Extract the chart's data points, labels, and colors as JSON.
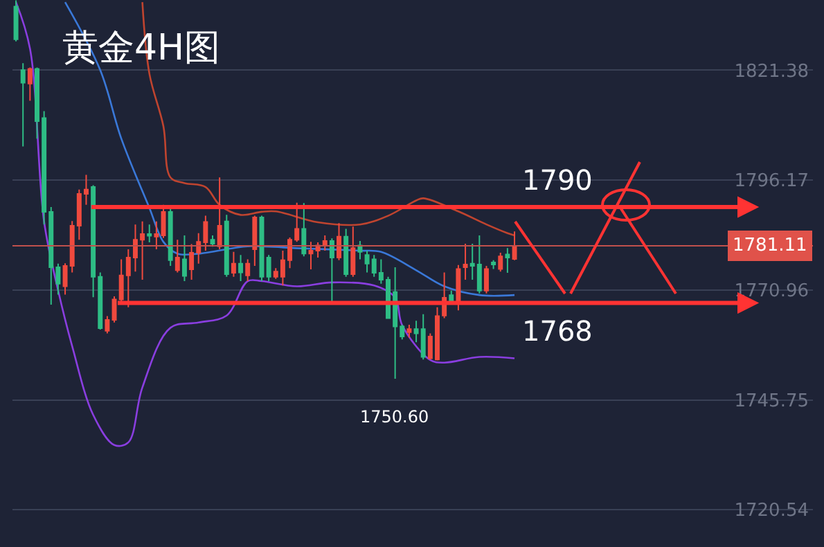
{
  "chart_data": {
    "type": "candlestick",
    "title": "黄金4H图",
    "categories": [
      null,
      null,
      null,
      null,
      null,
      null,
      null,
      null,
      null,
      null,
      null,
      null,
      null,
      null,
      null,
      null,
      null,
      null,
      null,
      null,
      null,
      null,
      null,
      null,
      null,
      null,
      null,
      null,
      null,
      null,
      null,
      null,
      null,
      null,
      null,
      null,
      null,
      null,
      null,
      null,
      null,
      null,
      null,
      null,
      null,
      null,
      null,
      null,
      null,
      null,
      null,
      null,
      null,
      null,
      null,
      null,
      null,
      null,
      null,
      null,
      null,
      null,
      null,
      null,
      null,
      null,
      null,
      null,
      null,
      null,
      null,
      null,
      null,
      null,
      null,
      null,
      null,
      null,
      null,
      null,
      null,
      null,
      null,
      null,
      null,
      null,
      null,
      null,
      null,
      null,
      null,
      null,
      null,
      null,
      null,
      null,
      null,
      null,
      null,
      null,
      null,
      null,
      null,
      null,
      null,
      null,
      null,
      null,
      null,
      null,
      null,
      null,
      null,
      null
    ],
    "ohlc": [
      [
        1836,
        1837.4,
        1828,
        1828.5
      ],
      [
        1821.4,
        1823,
        1803.9,
        1818.5
      ],
      [
        1818.3,
        1822,
        1814.4,
        1821.7
      ],
      [
        1821.7,
        1822,
        1805.7,
        1809.7
      ],
      [
        1810.4,
        1812,
        1786,
        1788.9
      ],
      [
        1788.9,
        1790,
        1767.6,
        1776.2
      ],
      [
        1776.2,
        1777,
        1769.9,
        1772.4
      ],
      [
        1771.8,
        1777.1,
        1769.9,
        1776.5
      ],
      [
        1776.5,
        1786.8,
        1775,
        1785.7
      ],
      [
        1785.7,
        1794,
        1782.5,
        1793
      ],
      [
        1793,
        1797.4,
        1790.5,
        1794
      ],
      [
        1794.6,
        1795,
        1769.3,
        1774
      ],
      [
        1774,
        1775,
        1761.9,
        1762.2
      ],
      [
        1761.6,
        1765,
        1761,
        1764.1
      ],
      [
        1764.1,
        1769.5,
        1763.5,
        1768.8
      ],
      [
        1768.8,
        1778,
        1768.2,
        1774.3
      ],
      [
        1774.3,
        1780.3,
        1767,
        1778.4
      ],
      [
        1778.4,
        1786,
        1775.2,
        1782.5
      ],
      [
        1782.5,
        1786.7,
        1773.3,
        1783.8
      ],
      [
        1783.8,
        1786,
        1781.9,
        1783.4
      ],
      [
        1783.2,
        1786.7,
        1780.3,
        1783.8
      ],
      [
        1783.5,
        1790.5,
        1782.9,
        1788.9
      ],
      [
        1788.9,
        1789.8,
        1776.5,
        1777.8
      ],
      [
        1775.5,
        1782.5,
        1775,
        1778.4
      ],
      [
        1778,
        1783.5,
        1773,
        1774.2
      ],
      [
        1775.7,
        1781.5,
        1773.3,
        1779.5
      ],
      [
        1779.5,
        1784,
        1777,
        1782
      ],
      [
        1781.9,
        1788,
        1780,
        1786.6
      ],
      [
        1782.5,
        1783.5,
        1780.9,
        1781.6
      ],
      [
        1781,
        1796.8,
        1780.3,
        1785.7
      ],
      [
        1786.7,
        1788.2,
        1774,
        1774.6
      ],
      [
        1774.9,
        1779.7,
        1774,
        1777
      ],
      [
        1777,
        1779,
        1773,
        1775
      ],
      [
        1774.3,
        1778,
        1773,
        1777
      ],
      [
        1780.3,
        1788,
        1776.5,
        1787.6
      ],
      [
        1787.6,
        1788,
        1773,
        1774
      ],
      [
        1778.4,
        1779,
        1773,
        1774
      ],
      [
        1774,
        1776,
        1773.5,
        1775.2
      ],
      [
        1774,
        1780,
        1772,
        1777.8
      ],
      [
        1777.8,
        1783,
        1776,
        1782.5
      ],
      [
        1782.5,
        1791,
        1782,
        1785
      ],
      [
        1785,
        1790.9,
        1778.7,
        1779.3
      ],
      [
        1779.3,
        1782,
        1775.7,
        1780
      ],
      [
        1780,
        1781.9,
        1778.4,
        1781.2
      ],
      [
        1781.2,
        1783.5,
        1780,
        1782.2
      ],
      [
        1782.2,
        1782.8,
        1767.9,
        1778.4
      ],
      [
        1778.4,
        1786.3,
        1777.8,
        1783.2
      ],
      [
        1783.2,
        1785,
        1774,
        1774.6
      ],
      [
        1774.6,
        1785.5,
        1774,
        1780.6
      ],
      [
        1781.2,
        1782.2,
        1778,
        1779.7
      ],
      [
        1779,
        1780,
        1775,
        1777
      ],
      [
        1778,
        1779,
        1774,
        1774.9
      ],
      [
        1774.9,
        1778,
        1772.4,
        1773.3
      ],
      [
        1773.3,
        1774,
        1764.5,
        1764.5
      ],
      [
        1770.5,
        1776.2,
        1750.6,
        1762.6
      ],
      [
        1762.6,
        1763,
        1759.6,
        1760.3
      ],
      [
        1761.3,
        1763,
        1760,
        1762
      ],
      [
        1762,
        1763.9,
        1759,
        1761
      ],
      [
        1762,
        1765.4,
        1755,
        1755.6
      ],
      [
        1755.3,
        1761,
        1755,
        1760.3
      ],
      [
        1755,
        1767,
        1754.8,
        1765
      ],
      [
        1765.1,
        1775,
        1764.5,
        1769.2
      ],
      [
        1769.8,
        1770.8,
        1767.6,
        1768.2
      ],
      [
        1768.5,
        1776.7,
        1766.3,
        1775.8
      ],
      [
        1776.2,
        1781.6,
        1773.3,
        1776.8
      ],
      [
        1777,
        1781.6,
        1773.3,
        1776.5
      ],
      [
        1776.8,
        1783.5,
        1770.2,
        1770.8
      ],
      [
        1770.8,
        1776.5,
        1770.2,
        1775.8
      ],
      [
        1777.3,
        1777.8,
        1775.8,
        1776.8
      ],
      [
        1775.8,
        1779.5,
        1775.2,
        1778.7
      ],
      [
        1779.1,
        1780.6,
        1774.9,
        1778.4
      ],
      [
        1778.1,
        1784.4,
        1777.8,
        1781.11
      ],
      null,
      null,
      null,
      null,
      null,
      null,
      null,
      null,
      null,
      null,
      null,
      null,
      null,
      null,
      null,
      null,
      null,
      null,
      null,
      null,
      null,
      null,
      null,
      null,
      null,
      null,
      null,
      null,
      null,
      null,
      null,
      null,
      null,
      null,
      null,
      null,
      null,
      null,
      null,
      null,
      null,
      null
    ],
    "series": [
      {
        "type": "line",
        "color": "#c0442f",
        "values": [
          null,
          null,
          null,
          null,
          null,
          null,
          null,
          null,
          null,
          null,
          null,
          null,
          null,
          null,
          null,
          null,
          null,
          null,
          1837,
          1820.6,
          null,
          1808.5,
          1796.8,
          null,
          1795.5,
          null,
          null,
          1794.6,
          null,
          1790.5,
          null,
          null,
          1788.2,
          null,
          null,
          1788.9,
          null,
          1789,
          null,
          null,
          null,
          null,
          null,
          1786.5,
          null,
          null,
          null,
          null,
          null,
          1786,
          null,
          null,
          null,
          1788,
          null,
          null,
          null,
          1791.5,
          1792,
          null,
          null,
          null,
          null,
          1789,
          null,
          null,
          null,
          1786,
          null,
          null,
          1784,
          1783.5,
          null,
          null,
          null,
          null,
          null,
          null,
          null,
          null,
          null,
          null,
          null,
          null,
          null,
          null,
          null,
          null,
          null,
          null,
          null,
          null,
          null,
          null,
          null,
          null,
          null,
          null,
          null,
          null,
          null,
          null,
          null,
          null,
          null,
          null,
          null,
          null,
          null,
          null,
          null,
          null,
          null,
          null
        ]
      },
      {
        "type": "line",
        "color": "#3a78d8",
        "values": [
          null,
          null,
          null,
          null,
          null,
          null,
          null,
          1837,
          null,
          null,
          null,
          null,
          1821.4,
          null,
          null,
          1805.7,
          null,
          null,
          null,
          1789.8,
          null,
          1782,
          null,
          1779.3,
          null,
          null,
          1779.3,
          null,
          null,
          null,
          null,
          1780.6,
          null,
          1781,
          null,
          null,
          null,
          null,
          null,
          null,
          null,
          1780.5,
          null,
          null,
          null,
          null,
          null,
          null,
          null,
          1780,
          null,
          null,
          1779.7,
          null,
          null,
          null,
          null,
          1775.5,
          null,
          null,
          null,
          1771.8,
          null,
          null,
          null,
          null,
          1769.8,
          null,
          null,
          null,
          null,
          1769.8,
          null,
          null,
          null,
          null,
          null,
          null,
          null,
          null,
          null,
          null,
          null,
          null,
          null,
          null,
          null,
          null,
          null,
          null,
          null,
          null,
          null,
          null,
          null,
          null,
          null,
          null,
          null,
          null,
          null,
          null,
          null,
          null,
          null,
          null,
          null,
          null,
          null,
          null,
          null,
          null,
          null,
          null
        ]
      },
      {
        "type": "line",
        "color": "#8a3ee0",
        "values": [
          1837,
          null,
          1826.3,
          null,
          1786.7,
          null,
          1770.9,
          null,
          1758.1,
          null,
          null,
          1742.3,
          null,
          null,
          1735.4,
          null,
          1736,
          null,
          1748.6,
          null,
          null,
          null,
          1762.3,
          null,
          null,
          null,
          1763.5,
          null,
          null,
          null,
          1765.1,
          null,
          null,
          1773,
          null,
          1773,
          null,
          null,
          null,
          null,
          1771.8,
          null,
          null,
          null,
          null,
          1772.7,
          null,
          null,
          null,
          null,
          null,
          1772,
          null,
          null,
          1769.2,
          1762.9,
          null,
          null,
          null,
          1754.9,
          null,
          1754.3,
          null,
          null,
          null,
          null,
          1755.6,
          null,
          null,
          null,
          null,
          1755.3,
          null,
          null,
          null,
          null,
          null,
          null,
          null,
          null,
          null,
          null,
          null,
          null,
          null,
          null,
          null,
          null,
          null,
          null,
          null,
          null,
          null,
          null,
          null,
          null,
          null,
          null,
          null,
          null,
          null,
          null,
          null,
          null,
          null,
          null,
          null,
          null,
          null,
          null,
          null,
          null,
          null,
          null
        ]
      }
    ],
    "ylim": [
      1712,
      1837.5
    ],
    "yticks": [
      1720.54,
      1745.75,
      1770.96,
      1796.17,
      1821.38
    ],
    "grid": "y",
    "tick_labels": "y",
    "ref_lines": [
      {
        "axis": "y",
        "value": 1790,
        "label": "1790",
        "color": "#ff3333"
      },
      {
        "axis": "y",
        "value": 1768,
        "label": "1768",
        "color": "#ff3333"
      },
      {
        "axis": "y",
        "value": 1781.11,
        "label": "1781.11",
        "color": "#c0504d"
      }
    ],
    "annotations": [
      "1750.60"
    ]
  }
}
